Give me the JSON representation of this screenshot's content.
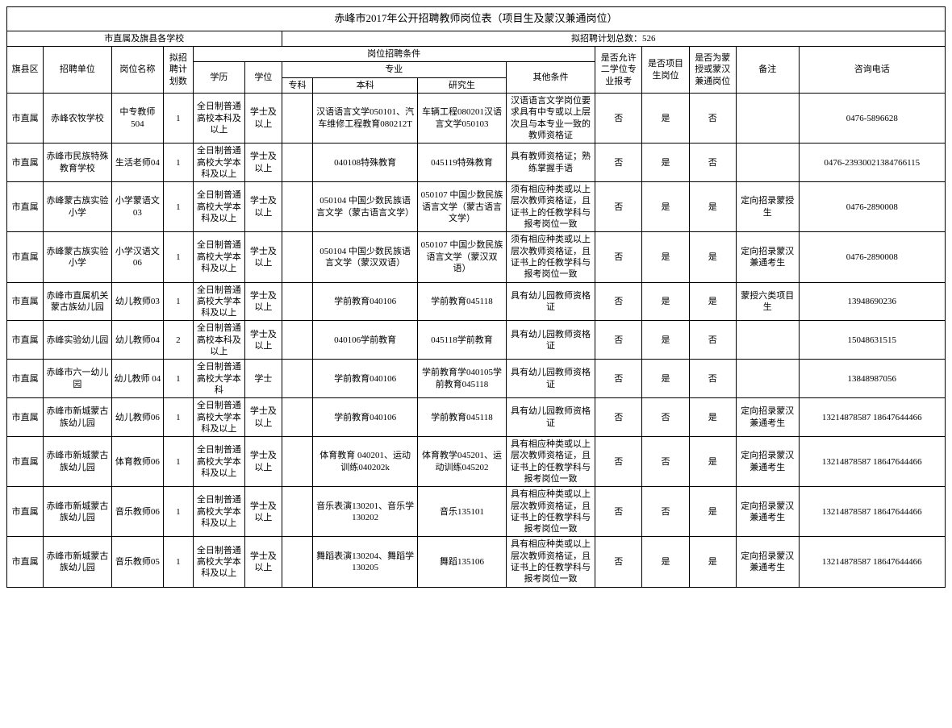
{
  "title": "赤峰市2017年公开招聘教师岗位表（项目生及蒙汉兼通岗位）",
  "header_left": "市直属及旗县各学校",
  "header_right": "拟招聘计划总数：526",
  "cols": {
    "qx": "旗县区",
    "dw": "招聘单位",
    "gw": "岗位名称",
    "num": "拟招聘计划数",
    "cond": "岗位招聘条件",
    "xl": "学历",
    "xw": "学位",
    "zy": "专业",
    "zk": "专科",
    "bk": "本科",
    "yjs": "研究生",
    "qt": "其他条件",
    "yx": "是否允许二学位专业报考",
    "xm": "是否项目生岗位",
    "mh": "是否为蒙授或蒙汉兼通岗位",
    "bz": "备注",
    "tel": "咨询电话"
  },
  "rows": [
    {
      "qx": "市直属",
      "dw": "赤峰农牧学校",
      "gw": "中专教师504",
      "num": "1",
      "xl": "全日制普通高校本科及以上",
      "xw": "学士及以上",
      "zk": "",
      "bk": "汉语语言文学050101、汽车维修工程教育080212T",
      "yjs": "车辆工程080201汉语言文学050103",
      "qt": "汉语语言文学岗位要求具有中专或以上层次且与本专业一致的教师资格证",
      "yx": "否",
      "xm": "是",
      "mh": "否",
      "bz": "",
      "tel": "0476-5896628"
    },
    {
      "qx": "市直属",
      "dw": "赤峰市民族特殊教育学校",
      "gw": "生活老师04",
      "num": "1",
      "xl": "全日制普通高校大学本科及以上",
      "xw": "学士及以上",
      "zk": "",
      "bk": "040108特殊教育",
      "yjs": "045119特殊教育",
      "qt": "具有教师资格证；熟练掌握手语",
      "yx": "否",
      "xm": "是",
      "mh": "否",
      "bz": "",
      "tel": "0476-23930021384766115"
    },
    {
      "qx": "市直属",
      "dw": "赤峰蒙古族实验小学",
      "gw": "小学蒙语文03",
      "num": "1",
      "xl": "全日制普通高校大学本科及以上",
      "xw": "学士及以上",
      "zk": "",
      "bk": "050104 中国少数民族语言文学（蒙古语言文学）",
      "yjs": "050107 中国少数民族语言文学（蒙古语言文学）",
      "qt": "须有相应种类或以上层次教师资格证，且证书上的任教学科与报考岗位一致",
      "yx": "否",
      "xm": "是",
      "mh": "是",
      "bz": "定向招录蒙授生",
      "tel": "0476-2890008"
    },
    {
      "qx": "市直属",
      "dw": "赤峰蒙古族实验小学",
      "gw": "小学汉语文06",
      "num": "1",
      "xl": "全日制普通高校大学本科及以上",
      "xw": "学士及以上",
      "zk": "",
      "bk": "050104 中国少数民族语言文学（蒙汉双语）",
      "yjs": "050107 中国少数民族语言文学（蒙汉双语）",
      "qt": "须有相应种类或以上层次教师资格证，且证书上的任教学科与报考岗位一致",
      "yx": "否",
      "xm": "是",
      "mh": "是",
      "bz": "定向招录蒙汉兼通考生",
      "tel": "0476-2890008"
    },
    {
      "qx": "市直属",
      "dw": "赤峰市直属机关蒙古族幼儿园",
      "gw": "幼儿教师03",
      "num": "1",
      "xl": "全日制普通高校大学本科及以上",
      "xw": "学士及以上",
      "zk": "",
      "bk": "学前教育040106",
      "yjs": "学前教育045118",
      "qt": "具有幼儿园教师资格证",
      "yx": "否",
      "xm": "是",
      "mh": "是",
      "bz": "蒙授六类项目生",
      "tel": "13948690236"
    },
    {
      "qx": "市直属",
      "dw": "赤峰实验幼儿园",
      "gw": "幼儿教师04",
      "num": "2",
      "xl": "全日制普通高校本科及以上",
      "xw": "学士及以上",
      "zk": "",
      "bk": "040106学前教育",
      "yjs": "045118学前教育",
      "qt": "具有幼儿园教师资格证",
      "yx": "否",
      "xm": "是",
      "mh": "否",
      "bz": "",
      "tel": "15048631515"
    },
    {
      "qx": "市直属",
      "dw": "赤峰市六一幼儿园",
      "gw": "幼儿教师 04",
      "num": "1",
      "xl": "全日制普通高校大学本科",
      "xw": "学士",
      "zk": "",
      "bk": "学前教育040106",
      "yjs": "学前教育学040105学前教育045118",
      "qt": "具有幼儿园教师资格证",
      "yx": "否",
      "xm": "是",
      "mh": "否",
      "bz": "",
      "tel": "13848987056"
    },
    {
      "qx": "市直属",
      "dw": "赤峰市新城蒙古族幼儿园",
      "gw": "幼儿教师06",
      "num": "1",
      "xl": "全日制普通高校大学本科及以上",
      "xw": "学士及以上",
      "zk": "",
      "bk": "学前教育040106",
      "yjs": "学前教育045118",
      "qt": "具有幼儿园教师资格证",
      "yx": "否",
      "xm": "否",
      "mh": "是",
      "bz": "定向招录蒙汉兼通考生",
      "tel": "13214878587 18647644466"
    },
    {
      "qx": "市直属",
      "dw": "赤峰市新城蒙古族幼儿园",
      "gw": "体育教师06",
      "num": "1",
      "xl": "全日制普通高校大学本科及以上",
      "xw": "学士及以上",
      "zk": "",
      "bk": "体育教育 040201、运动训练040202k",
      "yjs": "体育教学045201、运动训练045202",
      "qt": "具有相应种类或以上层次教师资格证，且证书上的任教学科与报考岗位一致",
      "yx": "否",
      "xm": "否",
      "mh": "是",
      "bz": "定向招录蒙汉兼通考生",
      "tel": "13214878587 18647644466"
    },
    {
      "qx": "市直属",
      "dw": "赤峰市新城蒙古族幼儿园",
      "gw": "音乐教师06",
      "num": "1",
      "xl": "全日制普通高校大学本科及以上",
      "xw": "学士及以上",
      "zk": "",
      "bk": "音乐表演130201、音乐学130202",
      "yjs": "音乐135101",
      "qt": "具有相应种类或以上层次教师资格证，且证书上的任教学科与报考岗位一致",
      "yx": "否",
      "xm": "否",
      "mh": "是",
      "bz": "定向招录蒙汉兼通考生",
      "tel": "13214878587 18647644466"
    },
    {
      "qx": "市直属",
      "dw": "赤峰市新城蒙古族幼儿园",
      "gw": "音乐教师05",
      "num": "1",
      "xl": "全日制普通高校大学本科及以上",
      "xw": "学士及以上",
      "zk": "",
      "bk": "舞蹈表演130204、舞蹈学130205",
      "yjs": "舞蹈135106",
      "qt": "具有相应种类或以上层次教师资格证，且证书上的任教学科与报考岗位一致",
      "yx": "否",
      "xm": "是",
      "mh": "是",
      "bz": "定向招录蒙汉兼通考生",
      "tel": "13214878587 18647644466"
    }
  ]
}
